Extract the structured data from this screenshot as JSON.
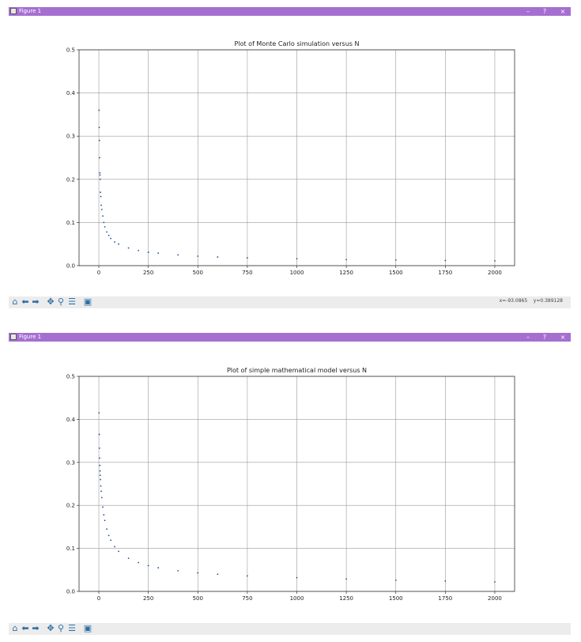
{
  "windows": [
    {
      "title": "Figure 1",
      "controls": {
        "minimize": "–",
        "help": "?",
        "close": "×"
      },
      "coordinates": "x=-93.0865    y=0.389128",
      "toolbar": [
        "home-icon",
        "back-icon",
        "forward-icon",
        "pan-icon",
        "zoom-icon",
        "configure-icon",
        "save-icon"
      ],
      "chart_data": {
        "type": "scatter",
        "title": "Plot of Monte Carlo simulation versus N",
        "xlabel": "",
        "ylabel": "",
        "xlim": [
          -100,
          2100
        ],
        "ylim": [
          0,
          0.5
        ],
        "x_ticks": [
          0,
          250,
          500,
          750,
          1000,
          1250,
          1500,
          1750,
          2000
        ],
        "y_ticks": [
          0.0,
          0.1,
          0.2,
          0.3,
          0.4,
          0.5
        ],
        "x_tick_labels": [
          "0",
          "250",
          "500",
          "750",
          "1000",
          "1250",
          "1500",
          "1750",
          "2000"
        ],
        "y_tick_labels": [
          "0.0",
          "0.1",
          "0.2",
          "0.3",
          "0.4",
          "0.5"
        ],
        "grid": true,
        "color": "#1f4e9c",
        "series": [
          {
            "name": "Monte Carlo",
            "x": [
              1,
              2,
              3,
              4,
              5,
              6,
              7,
              8,
              10,
              12,
              15,
              20,
              25,
              30,
              40,
              50,
              60,
              80,
              100,
              150,
              200,
              250,
              300,
              400,
              500,
              600,
              750,
              1000,
              1250,
              1500,
              1750,
              2000
            ],
            "y": [
              0.36,
              0.32,
              0.29,
              0.25,
              0.215,
              0.21,
              0.2,
              0.17,
              0.16,
              0.14,
              0.13,
              0.115,
              0.1,
              0.09,
              0.078,
              0.07,
              0.063,
              0.055,
              0.05,
              0.041,
              0.035,
              0.031,
              0.029,
              0.025,
              0.022,
              0.02,
              0.018,
              0.016,
              0.014,
              0.013,
              0.012,
              0.011
            ]
          }
        ]
      }
    },
    {
      "title": "Figure 1",
      "controls": {
        "minimize": "–",
        "help": "?",
        "close": "×"
      },
      "coordinates": "",
      "toolbar": [
        "home-icon",
        "back-icon",
        "forward-icon",
        "pan-icon",
        "zoom-icon",
        "configure-icon",
        "save-icon"
      ],
      "chart_data": {
        "type": "scatter",
        "title": "Plot of simple mathematical model versus N",
        "xlabel": "",
        "ylabel": "",
        "xlim": [
          -100,
          2100
        ],
        "ylim": [
          0,
          0.5
        ],
        "x_ticks": [
          0,
          250,
          500,
          750,
          1000,
          1250,
          1500,
          1750,
          2000
        ],
        "y_ticks": [
          0.0,
          0.1,
          0.2,
          0.3,
          0.4,
          0.5
        ],
        "x_tick_labels": [
          "0",
          "250",
          "500",
          "750",
          "1000",
          "1250",
          "1500",
          "1750",
          "2000"
        ],
        "y_tick_labels": [
          "0.0",
          "0.1",
          "0.2",
          "0.3",
          "0.4",
          "0.5"
        ],
        "grid": true,
        "color": "#1f4e9c",
        "series": [
          {
            "name": "Model",
            "x": [
              1,
              2,
              3,
              4,
              5,
              6,
              7,
              8,
              10,
              12,
              15,
              20,
              25,
              30,
              40,
              50,
              60,
              80,
              100,
              150,
              200,
              250,
              300,
              400,
              500,
              600,
              750,
              1000,
              1250,
              1500,
              1750,
              2000
            ],
            "y": [
              0.415,
              0.365,
              0.333,
              0.31,
              0.293,
              0.28,
              0.27,
              0.26,
              0.245,
              0.233,
              0.218,
              0.196,
              0.178,
              0.165,
              0.145,
              0.13,
              0.119,
              0.104,
              0.093,
              0.077,
              0.067,
              0.06,
              0.055,
              0.048,
              0.043,
              0.04,
              0.036,
              0.032,
              0.029,
              0.026,
              0.024,
              0.022
            ]
          }
        ]
      }
    }
  ]
}
